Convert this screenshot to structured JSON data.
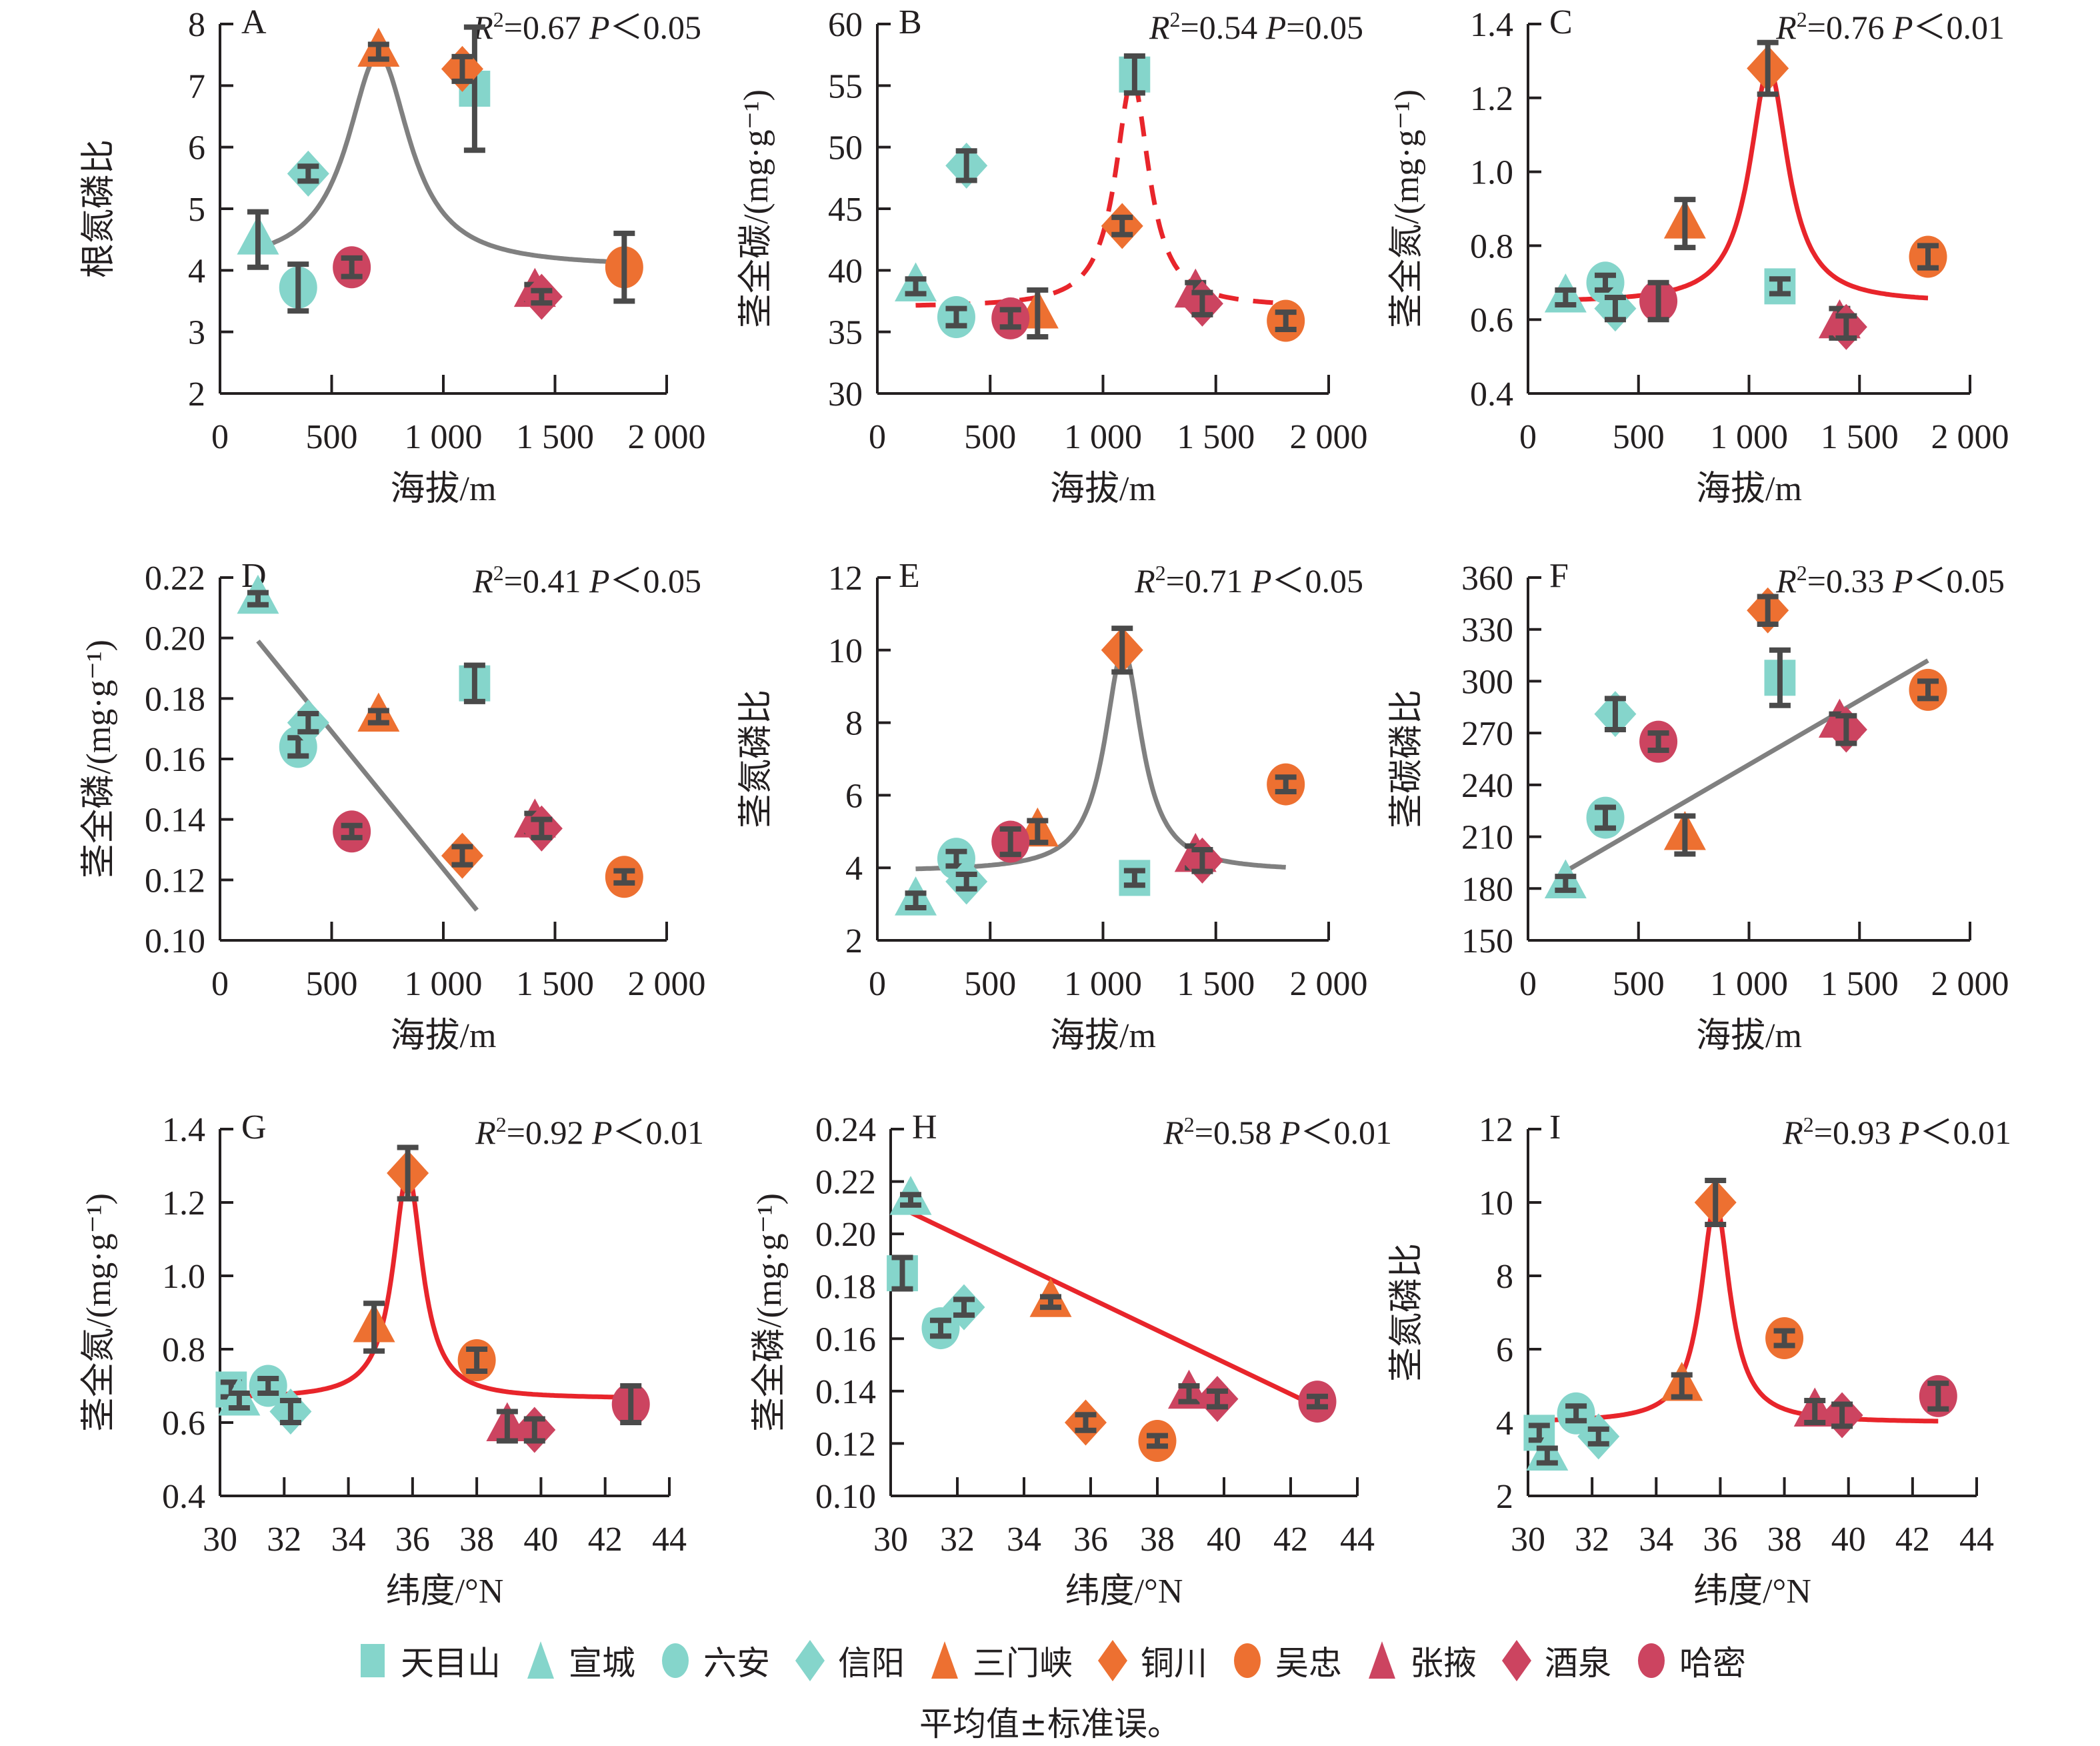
{
  "figure": {
    "note": "平均值±标准误。",
    "colors": {
      "teal": "#85d5cb",
      "orange": "#ed7031",
      "crimson": "#cc4460",
      "errorbar": "#4a4a4a",
      "fit_gray": "#808080",
      "fit_red": "#e8252b"
    }
  },
  "legend": [
    {
      "name": "天目山",
      "marker": "square",
      "color": "#85d5cb"
    },
    {
      "name": "宣城",
      "marker": "triangle",
      "color": "#85d5cb"
    },
    {
      "name": "六安",
      "marker": "circle",
      "color": "#85d5cb"
    },
    {
      "name": "信阳",
      "marker": "diamond",
      "color": "#85d5cb"
    },
    {
      "name": "三门峡",
      "marker": "triangle",
      "color": "#ed7031"
    },
    {
      "name": "铜川",
      "marker": "diamond",
      "color": "#ed7031"
    },
    {
      "name": "吴忠",
      "marker": "circle",
      "color": "#ed7031"
    },
    {
      "name": "张掖",
      "marker": "triangle",
      "color": "#cc4460"
    },
    {
      "name": "酒泉",
      "marker": "diamond",
      "color": "#cc4460"
    },
    {
      "name": "哈密",
      "marker": "circle",
      "color": "#cc4460"
    }
  ],
  "chart_data": [
    {
      "panel": "A",
      "type": "scatter",
      "ylabel": "根氮磷比",
      "xlabel": "海拔/m",
      "xlim": [
        0,
        2000
      ],
      "ylim": [
        2,
        8
      ],
      "xticks": [
        0,
        500,
        1000,
        1500,
        2000
      ],
      "xtick_labels": [
        "0",
        "500",
        "1 000",
        "1 500",
        "2 000"
      ],
      "yticks": [
        2,
        3,
        4,
        5,
        6,
        7,
        8
      ],
      "ytick_labels": [
        "2",
        "3",
        "4",
        "5",
        "6",
        "7",
        "8"
      ],
      "stat": {
        "r2": "0.67",
        "p": "P<0.05"
      },
      "fit": {
        "type": "peak",
        "style": "solid",
        "color": "gray",
        "x0": 710,
        "y0": 7.5,
        "base": 4.05,
        "width": 170,
        "xrange": [
          170,
          1810
        ]
      },
      "points": [
        {
          "site": "天目山",
          "x": 1140,
          "y": 6.95,
          "err": 1.0
        },
        {
          "site": "宣城",
          "x": 170,
          "y": 4.5,
          "err": 0.45
        },
        {
          "site": "六安",
          "x": 350,
          "y": 3.72,
          "err": 0.38
        },
        {
          "site": "信阳",
          "x": 395,
          "y": 5.57,
          "err": 0.12
        },
        {
          "site": "三门峡",
          "x": 710,
          "y": 7.55,
          "err": 0.12
        },
        {
          "site": "铜川",
          "x": 1085,
          "y": 7.27,
          "err": 0.2
        },
        {
          "site": "吴忠",
          "x": 1810,
          "y": 4.05,
          "err": 0.55
        },
        {
          "site": "张掖",
          "x": 1410,
          "y": 3.65,
          "err": 0.12
        },
        {
          "site": "酒泉",
          "x": 1440,
          "y": 3.57,
          "err": 0.1
        },
        {
          "site": "哈密",
          "x": 590,
          "y": 4.05,
          "err": 0.15
        }
      ]
    },
    {
      "panel": "B",
      "type": "scatter",
      "ylabel": "茎全碳/(mg·g⁻¹)",
      "xlabel": "海拔/m",
      "xlim": [
        0,
        2000
      ],
      "ylim": [
        30,
        60
      ],
      "xticks": [
        0,
        500,
        1000,
        1500,
        2000
      ],
      "xtick_labels": [
        "0",
        "500",
        "1 000",
        "1 500",
        "2 000"
      ],
      "yticks": [
        30,
        35,
        40,
        45,
        50,
        55,
        60
      ],
      "ytick_labels": [
        "30",
        "35",
        "40",
        "45",
        "50",
        "55",
        "60"
      ],
      "stat": {
        "r2": "0.54",
        "p": "P=0.05"
      },
      "fit": {
        "type": "peak",
        "style": "dashed",
        "color": "red",
        "x0": 1130,
        "y0": 55.5,
        "base": 37.0,
        "width": 90,
        "xrange": [
          170,
          1810
        ]
      },
      "points": [
        {
          "site": "天目山",
          "x": 1140,
          "y": 55.9,
          "err": 1.5
        },
        {
          "site": "宣城",
          "x": 170,
          "y": 38.7,
          "err": 0.6
        },
        {
          "site": "六安",
          "x": 350,
          "y": 36.2,
          "err": 0.7
        },
        {
          "site": "信阳",
          "x": 395,
          "y": 48.5,
          "err": 1.2
        },
        {
          "site": "三门峡",
          "x": 710,
          "y": 36.5,
          "err": 1.9
        },
        {
          "site": "铜川",
          "x": 1085,
          "y": 43.6,
          "err": 0.7
        },
        {
          "site": "吴忠",
          "x": 1810,
          "y": 35.9,
          "err": 0.7
        },
        {
          "site": "张掖",
          "x": 1410,
          "y": 38.2,
          "err": 0.8
        },
        {
          "site": "酒泉",
          "x": 1440,
          "y": 37.3,
          "err": 0.9
        },
        {
          "site": "哈密",
          "x": 590,
          "y": 36.1,
          "err": 0.7
        }
      ]
    },
    {
      "panel": "C",
      "type": "scatter",
      "ylabel": "茎全氮/(mg·g⁻¹)",
      "xlabel": "海拔/m",
      "xlim": [
        0,
        2000
      ],
      "ylim": [
        0.4,
        1.4
      ],
      "xticks": [
        0,
        500,
        1000,
        1500,
        2000
      ],
      "xtick_labels": [
        "0",
        "500",
        "1 000",
        "1 500",
        "2 000"
      ],
      "yticks": [
        0.4,
        0.6,
        0.8,
        1.0,
        1.2,
        1.4
      ],
      "ytick_labels": [
        "0.4",
        "0.6",
        "0.8",
        "1.0",
        "1.2",
        "1.4"
      ],
      "stat": {
        "r2": "0.76",
        "p": "P<0.01"
      },
      "fit": {
        "type": "peak",
        "style": "solid",
        "color": "red",
        "x0": 1090,
        "y0": 1.28,
        "base": 0.645,
        "width": 105,
        "xrange": [
          170,
          1810
        ]
      },
      "points": [
        {
          "site": "天目山",
          "x": 1140,
          "y": 0.69,
          "err": 0.02
        },
        {
          "site": "宣城",
          "x": 170,
          "y": 0.66,
          "err": 0.02
        },
        {
          "site": "六安",
          "x": 350,
          "y": 0.7,
          "err": 0.02
        },
        {
          "site": "信阳",
          "x": 395,
          "y": 0.63,
          "err": 0.03
        },
        {
          "site": "三门峡",
          "x": 710,
          "y": 0.86,
          "err": 0.065
        },
        {
          "site": "铜川",
          "x": 1085,
          "y": 1.28,
          "err": 0.07
        },
        {
          "site": "吴忠",
          "x": 1810,
          "y": 0.77,
          "err": 0.03
        },
        {
          "site": "张掖",
          "x": 1410,
          "y": 0.59,
          "err": 0.04
        },
        {
          "site": "酒泉",
          "x": 1440,
          "y": 0.58,
          "err": 0.03
        },
        {
          "site": "哈密",
          "x": 590,
          "y": 0.65,
          "err": 0.05
        }
      ]
    },
    {
      "panel": "D",
      "type": "scatter",
      "ylabel": "茎全磷/(mg·g⁻¹)",
      "xlabel": "海拔/m",
      "xlim": [
        0,
        2000
      ],
      "ylim": [
        0.1,
        0.22
      ],
      "xticks": [
        0,
        500,
        1000,
        1500,
        2000
      ],
      "xtick_labels": [
        "0",
        "500",
        "1 000",
        "1 500",
        "2 000"
      ],
      "yticks": [
        0.1,
        0.12,
        0.14,
        0.16,
        0.18,
        0.2,
        0.22
      ],
      "ytick_labels": [
        "0.10",
        "0.12",
        "0.14",
        "0.16",
        "0.18",
        "0.20",
        "0.22"
      ],
      "stat": {
        "r2": "0.41",
        "p": "P<0.05"
      },
      "fit": {
        "type": "linear",
        "style": "solid",
        "color": "gray",
        "x1": 170,
        "y1": 0.199,
        "x2": 1150,
        "y2": 0.11
      },
      "points": [
        {
          "site": "天目山",
          "x": 1140,
          "y": 0.185,
          "err": 0.006
        },
        {
          "site": "宣城",
          "x": 170,
          "y": 0.213,
          "err": 0.002
        },
        {
          "site": "六安",
          "x": 350,
          "y": 0.164,
          "err": 0.003
        },
        {
          "site": "信阳",
          "x": 395,
          "y": 0.172,
          "err": 0.003
        },
        {
          "site": "三门峡",
          "x": 710,
          "y": 0.174,
          "err": 0.002
        },
        {
          "site": "铜川",
          "x": 1085,
          "y": 0.128,
          "err": 0.003
        },
        {
          "site": "吴忠",
          "x": 1810,
          "y": 0.121,
          "err": 0.002
        },
        {
          "site": "张掖",
          "x": 1410,
          "y": 0.139,
          "err": 0.003
        },
        {
          "site": "酒泉",
          "x": 1440,
          "y": 0.137,
          "err": 0.003
        },
        {
          "site": "哈密",
          "x": 590,
          "y": 0.136,
          "err": 0.002
        }
      ]
    },
    {
      "panel": "E",
      "type": "scatter",
      "ylabel": "茎氮磷比",
      "xlabel": "海拔/m",
      "xlim": [
        0,
        2000
      ],
      "ylim": [
        2,
        12
      ],
      "xticks": [
        0,
        500,
        1000,
        1500,
        2000
      ],
      "xtick_labels": [
        "0",
        "500",
        "1 000",
        "1 500",
        "2 000"
      ],
      "yticks": [
        2,
        4,
        6,
        8,
        10,
        12
      ],
      "ytick_labels": [
        "2",
        "4",
        "6",
        "8",
        "10",
        "12"
      ],
      "stat": {
        "r2": "0.71",
        "p": "P<0.05"
      },
      "fit": {
        "type": "peak",
        "style": "solid",
        "color": "gray",
        "x0": 1090,
        "y0": 10.0,
        "base": 3.9,
        "width": 100,
        "xrange": [
          170,
          1810
        ]
      },
      "points": [
        {
          "site": "天目山",
          "x": 1140,
          "y": 3.72,
          "err": 0.2
        },
        {
          "site": "宣城",
          "x": 170,
          "y": 3.1,
          "err": 0.2
        },
        {
          "site": "六安",
          "x": 350,
          "y": 4.25,
          "err": 0.2
        },
        {
          "site": "信阳",
          "x": 395,
          "y": 3.62,
          "err": 0.2
        },
        {
          "site": "三门峡",
          "x": 710,
          "y": 5.0,
          "err": 0.3
        },
        {
          "site": "铜川",
          "x": 1085,
          "y": 10.0,
          "err": 0.6
        },
        {
          "site": "吴忠",
          "x": 1810,
          "y": 6.3,
          "err": 0.2
        },
        {
          "site": "张掖",
          "x": 1410,
          "y": 4.3,
          "err": 0.3
        },
        {
          "site": "酒泉",
          "x": 1440,
          "y": 4.2,
          "err": 0.3
        },
        {
          "site": "哈密",
          "x": 590,
          "y": 4.72,
          "err": 0.35
        }
      ]
    },
    {
      "panel": "F",
      "type": "scatter",
      "ylabel": "茎碳磷比",
      "xlabel": "海拔/m",
      "xlim": [
        0,
        2000
      ],
      "ylim": [
        150,
        360
      ],
      "xticks": [
        0,
        500,
        1000,
        1500,
        2000
      ],
      "xtick_labels": [
        "0",
        "500",
        "1 000",
        "1 500",
        "2 000"
      ],
      "yticks": [
        150,
        180,
        210,
        240,
        270,
        300,
        330,
        360
      ],
      "ytick_labels": [
        "150",
        "180",
        "210",
        "240",
        "270",
        "300",
        "330",
        "360"
      ],
      "stat": {
        "r2": "0.33",
        "p": "P<0.05"
      },
      "fit": {
        "type": "linear",
        "style": "solid",
        "color": "gray",
        "x1": 170,
        "y1": 190,
        "x2": 1810,
        "y2": 312
      },
      "points": [
        {
          "site": "天目山",
          "x": 1140,
          "y": 302,
          "err": 16
        },
        {
          "site": "宣城",
          "x": 170,
          "y": 183,
          "err": 4
        },
        {
          "site": "六安",
          "x": 350,
          "y": 221,
          "err": 6
        },
        {
          "site": "信阳",
          "x": 395,
          "y": 281,
          "err": 9
        },
        {
          "site": "三门峡",
          "x": 710,
          "y": 211,
          "err": 11
        },
        {
          "site": "铜川",
          "x": 1085,
          "y": 341,
          "err": 8
        },
        {
          "site": "吴忠",
          "x": 1810,
          "y": 295,
          "err": 5
        },
        {
          "site": "张掖",
          "x": 1410,
          "y": 276,
          "err": 5
        },
        {
          "site": "酒泉",
          "x": 1440,
          "y": 272,
          "err": 8
        },
        {
          "site": "哈密",
          "x": 590,
          "y": 265,
          "err": 5
        }
      ]
    },
    {
      "panel": "G",
      "type": "scatter",
      "ylabel": "茎全氮/(mg·g⁻¹)",
      "xlabel": "纬度/°N",
      "xlim": [
        30,
        44
      ],
      "ylim": [
        0.4,
        1.4
      ],
      "xticks": [
        30,
        32,
        34,
        36,
        38,
        40,
        42,
        44
      ],
      "xtick_labels": [
        "30",
        "32",
        "34",
        "36",
        "38",
        "40",
        "42",
        "44"
      ],
      "yticks": [
        0.4,
        0.6,
        0.8,
        1.0,
        1.2,
        1.4
      ],
      "ytick_labels": [
        "0.4",
        "0.6",
        "0.8",
        "1.0",
        "1.2",
        "1.4"
      ],
      "stat": {
        "r2": "0.92",
        "p": "P<0.01"
      },
      "fit": {
        "type": "peak",
        "style": "solid",
        "color": "red",
        "x0": 35.85,
        "y0": 1.28,
        "base": 0.665,
        "width": 0.55,
        "xrange": [
          30.35,
          42.8
        ]
      },
      "points": [
        {
          "site": "天目山",
          "x": 30.35,
          "y": 0.69,
          "err": 0.02
        },
        {
          "site": "宣城",
          "x": 30.6,
          "y": 0.66,
          "err": 0.02
        },
        {
          "site": "六安",
          "x": 31.5,
          "y": 0.7,
          "err": 0.02
        },
        {
          "site": "信阳",
          "x": 32.2,
          "y": 0.63,
          "err": 0.03
        },
        {
          "site": "三门峡",
          "x": 34.8,
          "y": 0.86,
          "err": 0.065
        },
        {
          "site": "铜川",
          "x": 35.85,
          "y": 1.28,
          "err": 0.07
        },
        {
          "site": "吴忠",
          "x": 38.0,
          "y": 0.77,
          "err": 0.03
        },
        {
          "site": "张掖",
          "x": 38.95,
          "y": 0.59,
          "err": 0.04
        },
        {
          "site": "酒泉",
          "x": 39.8,
          "y": 0.58,
          "err": 0.03
        },
        {
          "site": "哈密",
          "x": 42.8,
          "y": 0.65,
          "err": 0.05
        }
      ]
    },
    {
      "panel": "H",
      "type": "scatter",
      "ylabel": "茎全磷/(mg·g⁻¹)",
      "xlabel": "纬度/°N",
      "xlim": [
        30,
        44
      ],
      "ylim": [
        0.1,
        0.24
      ],
      "xticks": [
        30,
        32,
        34,
        36,
        38,
        40,
        42,
        44
      ],
      "xtick_labels": [
        "30",
        "32",
        "34",
        "36",
        "38",
        "40",
        "42",
        "44"
      ],
      "yticks": [
        0.1,
        0.12,
        0.14,
        0.16,
        0.18,
        0.2,
        0.22,
        0.24
      ],
      "ytick_labels": [
        "0.10",
        "0.12",
        "0.14",
        "0.16",
        "0.18",
        "0.20",
        "0.22",
        "0.24"
      ],
      "stat": {
        "r2": "0.58",
        "p": "P<0.01"
      },
      "fit": {
        "type": "linear",
        "style": "solid",
        "color": "red",
        "x1": 30.3,
        "y1": 0.21,
        "x2": 42.8,
        "y2": 0.134
      },
      "points": [
        {
          "site": "天目山",
          "x": 30.35,
          "y": 0.185,
          "err": 0.006
        },
        {
          "site": "宣城",
          "x": 30.6,
          "y": 0.213,
          "err": 0.002
        },
        {
          "site": "六安",
          "x": 31.5,
          "y": 0.164,
          "err": 0.003
        },
        {
          "site": "信阳",
          "x": 32.2,
          "y": 0.172,
          "err": 0.003
        },
        {
          "site": "三门峡",
          "x": 34.8,
          "y": 0.174,
          "err": 0.002
        },
        {
          "site": "铜川",
          "x": 35.85,
          "y": 0.128,
          "err": 0.003
        },
        {
          "site": "吴忠",
          "x": 38.0,
          "y": 0.121,
          "err": 0.002
        },
        {
          "site": "张掖",
          "x": 38.95,
          "y": 0.139,
          "err": 0.003
        },
        {
          "site": "酒泉",
          "x": 39.8,
          "y": 0.137,
          "err": 0.003
        },
        {
          "site": "哈密",
          "x": 42.8,
          "y": 0.136,
          "err": 0.002
        }
      ]
    },
    {
      "panel": "I",
      "type": "scatter",
      "ylabel": "茎氮磷比",
      "xlabel": "纬度/°N",
      "xlim": [
        30,
        44
      ],
      "ylim": [
        2,
        12
      ],
      "xticks": [
        30,
        32,
        34,
        36,
        38,
        40,
        42,
        44
      ],
      "xtick_labels": [
        "30",
        "32",
        "34",
        "36",
        "38",
        "40",
        "42",
        "44"
      ],
      "yticks": [
        2,
        4,
        6,
        8,
        10,
        12
      ],
      "ytick_labels": [
        "2",
        "4",
        "6",
        "8",
        "10",
        "12"
      ],
      "stat": {
        "r2": "0.93",
        "p": "P<0.01"
      },
      "fit": {
        "type": "peak",
        "style": "solid",
        "color": "red",
        "x0": 35.85,
        "y0": 10.0,
        "base": 4.0,
        "width": 0.55,
        "xrange": [
          30.3,
          42.8
        ]
      },
      "points": [
        {
          "site": "天目山",
          "x": 30.35,
          "y": 3.72,
          "err": 0.2
        },
        {
          "site": "宣城",
          "x": 30.6,
          "y": 3.1,
          "err": 0.2
        },
        {
          "site": "六安",
          "x": 31.5,
          "y": 4.25,
          "err": 0.2
        },
        {
          "site": "信阳",
          "x": 32.2,
          "y": 3.62,
          "err": 0.2
        },
        {
          "site": "三门峡",
          "x": 34.8,
          "y": 5.0,
          "err": 0.3
        },
        {
          "site": "铜川",
          "x": 35.85,
          "y": 10.0,
          "err": 0.6
        },
        {
          "site": "吴忠",
          "x": 38.0,
          "y": 6.3,
          "err": 0.2
        },
        {
          "site": "张掖",
          "x": 38.95,
          "y": 4.3,
          "err": 0.3
        },
        {
          "site": "酒泉",
          "x": 39.8,
          "y": 4.2,
          "err": 0.3
        },
        {
          "site": "哈密",
          "x": 42.8,
          "y": 4.72,
          "err": 0.35
        }
      ]
    }
  ]
}
